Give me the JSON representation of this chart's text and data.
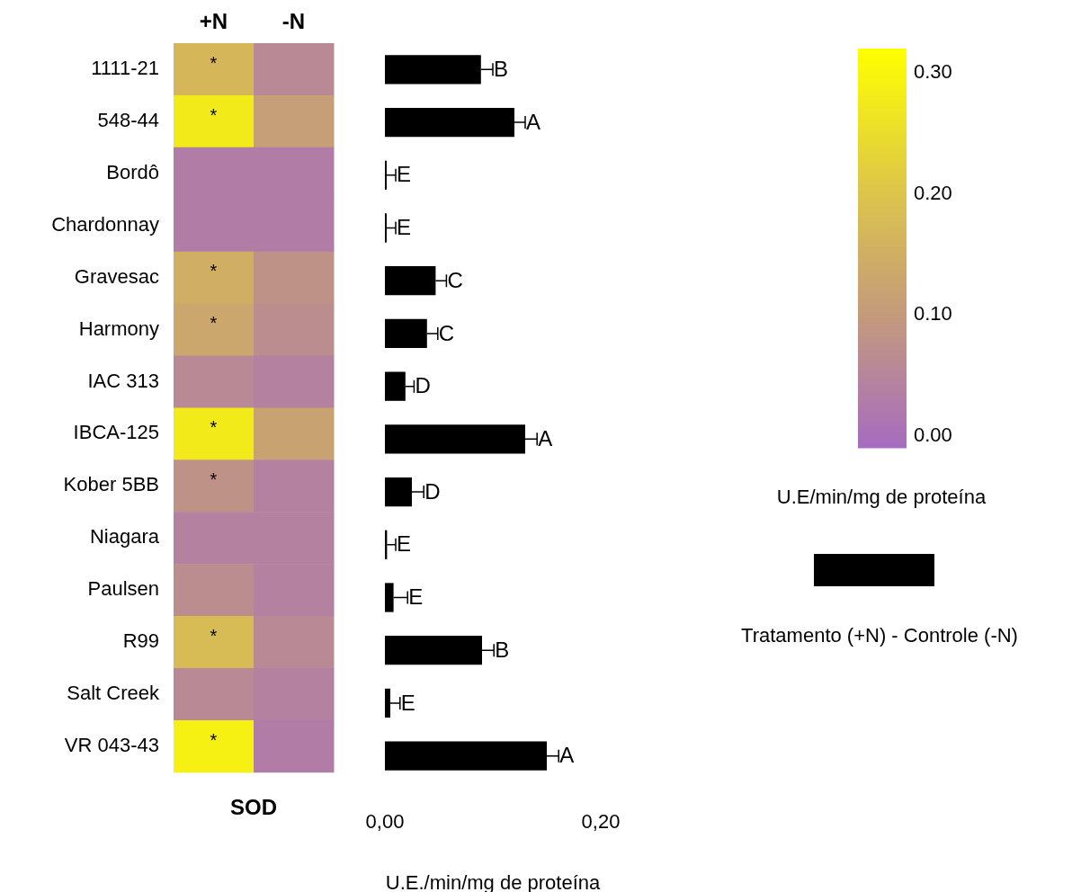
{
  "chart_data": [
    {
      "type": "heatmap",
      "xlabel": "SOD",
      "clabel": "U.E/min/mg de proteína",
      "categories": [
        "+N",
        "-N"
      ],
      "y_categories": [
        "1111-21",
        "548-44",
        "Bordô",
        "Chardonnay",
        "Gravesac",
        "Harmony",
        "IAC 313",
        "IBCA-125",
        "Kober 5BB",
        "Niagara",
        "Paulsen",
        "R99",
        "Salt Creek",
        "VR 043-43"
      ],
      "cells": [
        [
          0.17,
          0.06
        ],
        [
          0.28,
          0.11
        ],
        [
          0.03,
          0.03
        ],
        [
          0.03,
          0.03
        ],
        [
          0.15,
          0.08
        ],
        [
          0.13,
          0.07
        ],
        [
          0.06,
          0.04
        ],
        [
          0.28,
          0.12
        ],
        [
          0.08,
          0.04
        ],
        [
          0.04,
          0.04
        ],
        [
          0.07,
          0.04
        ],
        [
          0.18,
          0.06
        ],
        [
          0.06,
          0.04
        ],
        [
          0.29,
          0.03
        ]
      ],
      "cell_labels": [
        [
          "*",
          null
        ],
        [
          "*",
          null
        ],
        [
          null,
          null
        ],
        [
          null,
          null
        ],
        [
          "*",
          null
        ],
        [
          "*",
          null
        ],
        [
          null,
          null
        ],
        [
          "*",
          null
        ],
        [
          "*",
          null
        ],
        [
          null,
          null
        ],
        [
          null,
          null
        ],
        [
          "*",
          null
        ],
        [
          null,
          null
        ],
        [
          "*",
          null
        ]
      ],
      "clim": [
        -0.01,
        0.32
      ],
      "cticks": [
        {
          "value": 0,
          "label": "0.00"
        },
        {
          "value": 0.1,
          "label": "0.10"
        },
        {
          "value": 0.2,
          "label": "0.20"
        },
        {
          "value": 0.3,
          "label": "0.30"
        }
      ]
    },
    {
      "type": "bar",
      "orientation": "horizontal",
      "xlabel": "U.E./min/mg de proteína",
      "legend": "right",
      "categories": [
        null,
        null,
        null,
        null,
        null,
        null,
        null,
        null,
        null,
        null,
        null,
        null,
        null,
        null
      ],
      "tick_labels": "x",
      "series": [
        {
          "name": "Tratamento (+N) - Controle (-N)",
          "color": "#000000",
          "values": [
            0.089,
            0.12,
            0.001,
            0.001,
            0.047,
            0.039,
            0.019,
            0.13,
            0.025,
            0.002,
            0.008,
            0.09,
            0.005,
            0.15
          ],
          "errors": [
            [
              0.089,
              0.1
            ],
            [
              0.12,
              0.13
            ],
            [
              0.001,
              0.01
            ],
            [
              0.001,
              0.01
            ],
            [
              0.047,
              0.057
            ],
            [
              0.039,
              0.049
            ],
            [
              0.019,
              0.027
            ],
            [
              0.13,
              0.141
            ],
            [
              0.025,
              0.036
            ],
            [
              0.002,
              0.01
            ],
            [
              0.008,
              0.021
            ],
            [
              0.09,
              0.101
            ],
            [
              0.005,
              0.014
            ],
            [
              0.15,
              0.161
            ]
          ],
          "value_labels": [
            "B",
            "A",
            "E",
            "E",
            "C",
            "C",
            "D",
            "A",
            "D",
            "E",
            "E",
            "B",
            "E",
            "A"
          ]
        }
      ],
      "xlim": [
        0,
        0.2
      ],
      "xticks": [
        {
          "value": 0,
          "label": "0,00"
        },
        {
          "value": 0.2,
          "label": "0,20"
        }
      ]
    }
  ]
}
